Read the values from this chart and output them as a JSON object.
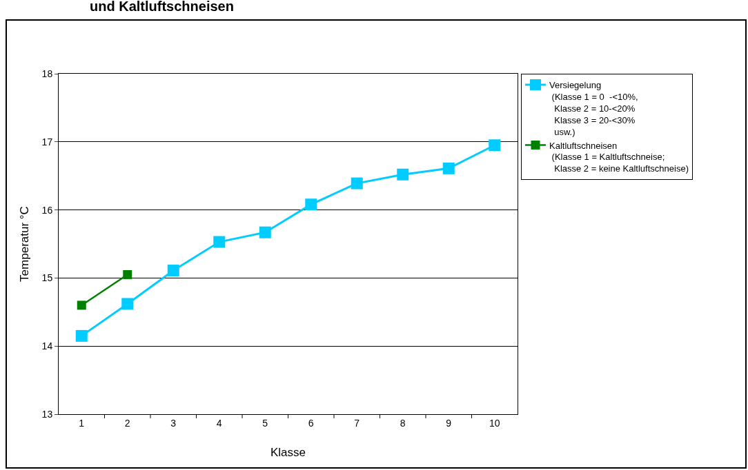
{
  "chart_data": {
    "type": "line",
    "title": "und Kaltluftschneisen",
    "xlabel": "Klasse",
    "ylabel": "Temperatur °C",
    "categories": [
      "1",
      "2",
      "3",
      "4",
      "5",
      "6",
      "7",
      "8",
      "9",
      "10"
    ],
    "series": [
      {
        "name": "Versiegelung\n (Klasse 1 = 0  -<10%,\n  Klasse 2 = 10-<20%\n  Klasse 3 = 20-<30%\n  usw.)",
        "color": "#00ccff",
        "values": [
          14.15,
          14.62,
          15.11,
          15.53,
          15.67,
          16.08,
          16.39,
          16.52,
          16.61,
          16.95
        ]
      },
      {
        "name": "Kaltluftschneisen\n (Klasse 1 = Kaltluftschneise;\n  Klasse 2 = keine Kaltluftschneise)",
        "color": "#008000",
        "values": [
          14.6,
          15.05,
          null,
          null,
          null,
          null,
          null,
          null,
          null,
          null
        ]
      }
    ],
    "ylim": [
      13,
      18
    ],
    "yticks": [
      13,
      14,
      15,
      16,
      17,
      18
    ],
    "grid": "y",
    "legend": "right",
    "marker": "square",
    "line_style": "solid"
  }
}
